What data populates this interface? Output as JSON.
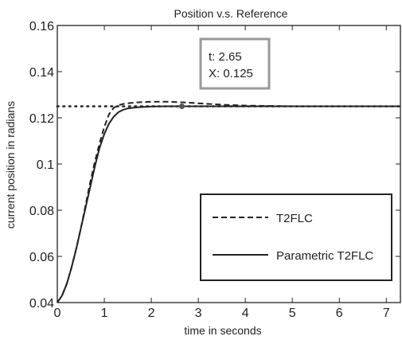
{
  "chart_data": {
    "type": "line",
    "title": "Position v.s. Reference",
    "xlabel": "time in seconds",
    "ylabel": "current position in radians",
    "xlim": [
      0,
      7.3
    ],
    "ylim": [
      0.04,
      0.16
    ],
    "x_ticks": [
      "0",
      "1",
      "2",
      "3",
      "4",
      "5",
      "6",
      "7"
    ],
    "y_ticks": [
      "0.04",
      "0.06",
      "0.08",
      "0.1",
      "0.12",
      "0.14",
      "0.16"
    ],
    "x_tick_values": [
      0,
      1,
      2,
      3,
      4,
      5,
      6,
      7
    ],
    "y_tick_values": [
      0.04,
      0.06,
      0.08,
      0.1,
      0.12,
      0.14,
      0.16
    ],
    "grid": false,
    "legend_position": "bottom-right",
    "reference": {
      "value": 0.125,
      "style": "dotted"
    },
    "series": [
      {
        "name": "T2FLC",
        "style": "dashed",
        "x": [
          0,
          0.1,
          0.2,
          0.3,
          0.4,
          0.5,
          0.6,
          0.7,
          0.8,
          0.9,
          1.0,
          1.1,
          1.2,
          1.3,
          1.4,
          1.5,
          1.7,
          2.0,
          2.3,
          2.6,
          3.0,
          3.5,
          4.0,
          5.0,
          6.0,
          7.3
        ],
        "values": [
          0.04,
          0.043,
          0.048,
          0.055,
          0.063,
          0.072,
          0.082,
          0.092,
          0.101,
          0.109,
          0.116,
          0.1215,
          0.1243,
          0.1255,
          0.126,
          0.1263,
          0.1267,
          0.127,
          0.127,
          0.1268,
          0.1263,
          0.1257,
          0.1253,
          0.125,
          0.125,
          0.125
        ]
      },
      {
        "name": "Parametric T2FLC",
        "style": "solid",
        "x": [
          0,
          0.1,
          0.2,
          0.3,
          0.4,
          0.5,
          0.6,
          0.7,
          0.8,
          0.9,
          1.0,
          1.1,
          1.2,
          1.3,
          1.4,
          1.5,
          1.7,
          2.0,
          2.3,
          2.6,
          3.0,
          3.5,
          4.0,
          5.0,
          6.0,
          7.3
        ],
        "values": [
          0.04,
          0.043,
          0.048,
          0.055,
          0.063,
          0.072,
          0.081,
          0.09,
          0.099,
          0.107,
          0.113,
          0.1175,
          0.1205,
          0.1225,
          0.1235,
          0.1241,
          0.1246,
          0.1249,
          0.125,
          0.125,
          0.125,
          0.125,
          0.125,
          0.125,
          0.125,
          0.125
        ]
      }
    ],
    "data_tip": {
      "x": 2.65,
      "y": 0.125,
      "line1": "t: 2.65",
      "line2": "X: 0.125"
    }
  },
  "colors": {
    "line": "#222222",
    "datatip_border": "#999999",
    "marker": "#555555"
  }
}
